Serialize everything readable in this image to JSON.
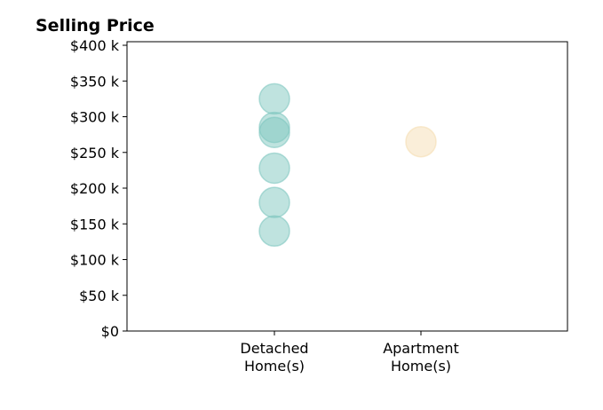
{
  "chart_data": {
    "type": "scatter",
    "title": "Selling Price",
    "xlabel": "",
    "ylabel": "",
    "ylim": [
      0,
      405000
    ],
    "yticks": [
      0,
      50000,
      100000,
      150000,
      200000,
      250000,
      300000,
      350000,
      400000
    ],
    "ytick_labels": [
      "$0",
      "$50 k",
      "$100 k",
      "$150 k",
      "$200 k",
      "$250 k",
      "$300 k",
      "$350 k",
      "$400 k"
    ],
    "categories": [
      {
        "lines": [
          "Detached",
          "Home(s)"
        ]
      },
      {
        "lines": [
          "Apartment",
          "Home(s)"
        ]
      }
    ],
    "series": [
      {
        "category_index": 0,
        "values": [
          325000,
          285000,
          278000,
          228000,
          180000,
          140000
        ],
        "color": "#7fc7bf"
      },
      {
        "category_index": 1,
        "values": [
          265000
        ],
        "color": "#f5deb3"
      }
    ],
    "marker_opacity": 0.5,
    "grid": false,
    "legend": "none"
  }
}
